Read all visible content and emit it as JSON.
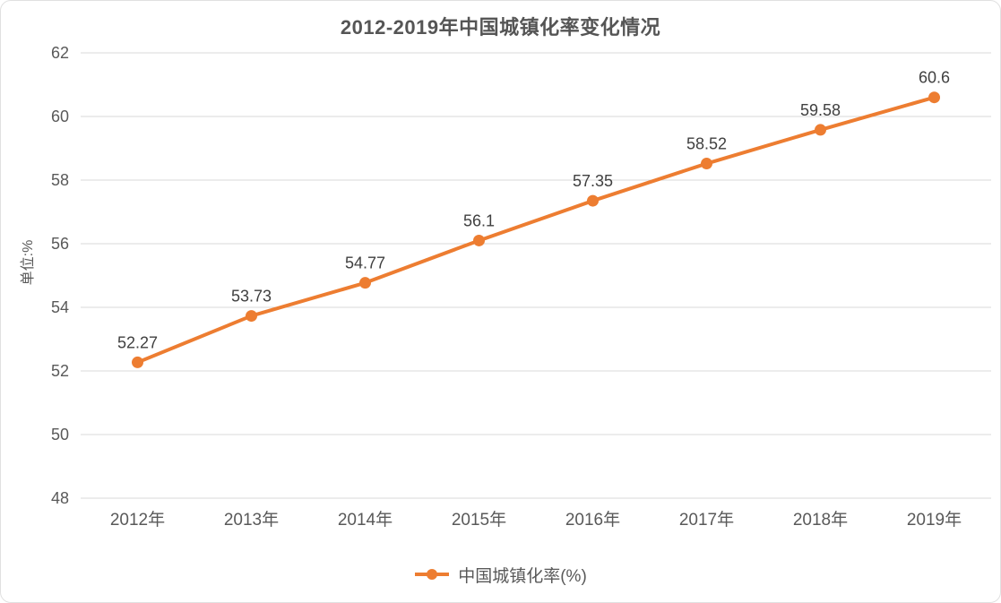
{
  "chart_data": {
    "type": "line",
    "title": "2012-2019年中国城镇化率变化情况",
    "categories": [
      "2012年",
      "2013年",
      "2014年",
      "2015年",
      "2016年",
      "2017年",
      "2018年",
      "2019年"
    ],
    "series": [
      {
        "name": "中国城镇化率(%)",
        "values": [
          52.27,
          53.73,
          54.77,
          56.1,
          57.35,
          58.52,
          59.58,
          60.6
        ]
      }
    ],
    "data_labels": [
      "52.27",
      "53.73",
      "54.77",
      "56.1",
      "57.35",
      "58.52",
      "59.58",
      "60.6"
    ],
    "ylabel": "单位:%",
    "xlabel": "",
    "ylim": [
      48,
      62
    ],
    "yticks": [
      48,
      50,
      52,
      54,
      56,
      58,
      60,
      62
    ],
    "grid": "horizontal gridlines only",
    "legend_position": "bottom-center",
    "marker": "filled-circle"
  },
  "legend": {
    "marker_icon": "line-with-dot-icon",
    "label": "中国城镇化率(%)"
  },
  "colors": {
    "series_line": "#ED7D31",
    "gridline": "#D9D9D9",
    "axis_text": "#595959",
    "data_label_text": "#404040",
    "title_text": "#555555",
    "background": "#FFFFFF",
    "card_border": "#E0E0E0"
  }
}
